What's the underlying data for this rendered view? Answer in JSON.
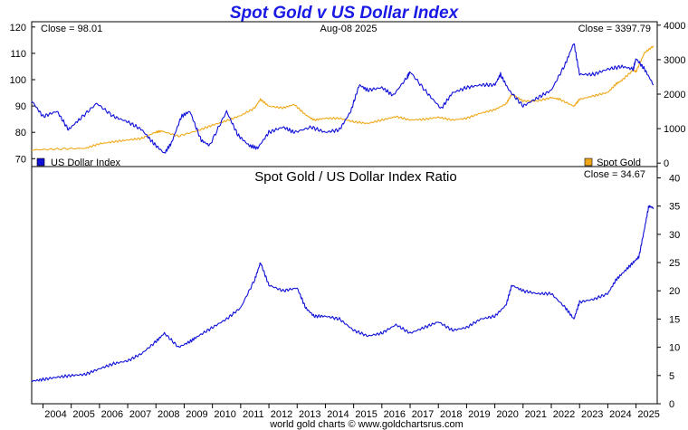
{
  "page": {
    "title": "Spot Gold v US Dollar Index",
    "footer": "world gold charts © www.goldchartsrus.com"
  },
  "colors": {
    "usd": "#1010d8",
    "gold": "#f0a818"
  },
  "chart_data": [
    {
      "type": "line",
      "close_left": "Close = 98.01",
      "date_label": "Aug-08  2025",
      "close_right": "Close = 3397.79",
      "y_left_ticks": [
        70,
        80,
        90,
        100,
        110,
        120
      ],
      "y_right_ticks": [
        0,
        1000,
        2000,
        3000,
        4000
      ],
      "ylim_left": [
        67,
        122
      ],
      "ylim_right": [
        -100,
        4100
      ],
      "x_range": [
        2003.6,
        2025.75
      ],
      "grid": false,
      "series": [
        {
          "name": "US Dollar Index",
          "axis": "left",
          "x": [
            2003.6,
            2004.0,
            2004.5,
            2004.9,
            2005.3,
            2005.9,
            2006.5,
            2007.0,
            2007.5,
            2007.9,
            2008.3,
            2008.55,
            2008.9,
            2009.2,
            2009.6,
            2009.9,
            2010.5,
            2010.9,
            2011.3,
            2011.6,
            2012.0,
            2012.5,
            2012.9,
            2013.5,
            2014.0,
            2014.5,
            2014.9,
            2015.2,
            2015.5,
            2016.0,
            2016.4,
            2016.9,
            2017.0,
            2017.6,
            2018.1,
            2018.5,
            2019.0,
            2019.5,
            2020.0,
            2020.2,
            2020.5,
            2021.0,
            2021.5,
            2022.0,
            2022.5,
            2022.8,
            2023.0,
            2023.5,
            2024.0,
            2024.5,
            2024.9,
            2025.0,
            2025.3,
            2025.62
          ],
          "y": [
            92,
            86,
            88,
            81,
            85,
            91,
            86,
            84,
            81,
            76,
            72,
            76,
            86,
            88,
            77,
            75,
            88,
            79,
            75,
            74,
            80,
            82,
            80,
            82,
            80,
            81,
            88,
            98,
            96,
            97,
            94,
            101,
            103,
            95,
            89,
            95,
            97,
            98,
            98,
            102,
            96,
            90,
            93,
            96,
            106,
            114,
            102,
            102,
            104,
            105,
            104,
            108,
            104,
            98
          ]
        },
        {
          "name": "Spot Gold",
          "axis": "right",
          "x": [
            2003.6,
            2004.5,
            2005.5,
            2006.0,
            2006.5,
            2007.0,
            2007.5,
            2008.0,
            2008.2,
            2008.8,
            2009.5,
            2010.0,
            2010.5,
            2011.0,
            2011.5,
            2011.7,
            2012.0,
            2012.5,
            2012.9,
            2013.3,
            2013.6,
            2014.0,
            2014.5,
            2015.0,
            2015.5,
            2016.0,
            2016.5,
            2017.0,
            2017.5,
            2018.0,
            2018.5,
            2019.0,
            2019.5,
            2020.0,
            2020.4,
            2020.6,
            2021.0,
            2021.5,
            2022.0,
            2022.3,
            2022.8,
            2023.0,
            2023.5,
            2024.0,
            2024.3,
            2024.5,
            2024.9,
            2025.0,
            2025.3,
            2025.62
          ],
          "y": [
            380,
            410,
            430,
            560,
            620,
            670,
            720,
            900,
            930,
            780,
            950,
            1100,
            1230,
            1380,
            1600,
            1850,
            1650,
            1600,
            1700,
            1400,
            1250,
            1300,
            1300,
            1200,
            1150,
            1250,
            1350,
            1250,
            1270,
            1330,
            1250,
            1300,
            1450,
            1550,
            1720,
            2000,
            1800,
            1800,
            1900,
            1850,
            1650,
            1850,
            1950,
            2050,
            2300,
            2400,
            2700,
            2650,
            3200,
            3398
          ]
        }
      ]
    },
    {
      "type": "line",
      "title": "Spot Gold  /  US Dollar Index Ratio",
      "close_right": "Close = 34.67",
      "y_ticks": [
        0,
        5,
        10,
        15,
        20,
        25,
        30,
        35,
        40
      ],
      "ylim": [
        0,
        42
      ],
      "x_range": [
        2003.6,
        2025.75
      ],
      "x_ticks": [
        "2004",
        "2005",
        "2006",
        "2007",
        "2008",
        "2009",
        "2010",
        "2011",
        "2012",
        "2013",
        "2014",
        "2015",
        "2016",
        "2017",
        "2018",
        "2019",
        "2020",
        "2021",
        "2022",
        "2023",
        "2024",
        "2025"
      ],
      "grid": false,
      "series": [
        {
          "x": [
            2003.6,
            2004.0,
            2004.5,
            2005.0,
            2005.5,
            2006.0,
            2006.5,
            2007.0,
            2007.5,
            2008.0,
            2008.3,
            2008.8,
            2009.2,
            2009.5,
            2010.0,
            2010.5,
            2011.0,
            2011.5,
            2011.7,
            2012.0,
            2012.5,
            2013.0,
            2013.3,
            2013.6,
            2014.0,
            2014.5,
            2015.0,
            2015.5,
            2016.0,
            2016.5,
            2017.0,
            2017.5,
            2018.0,
            2018.5,
            2019.0,
            2019.5,
            2020.0,
            2020.4,
            2020.6,
            2021.0,
            2021.5,
            2022.0,
            2022.5,
            2022.8,
            2023.0,
            2023.5,
            2024.0,
            2024.3,
            2024.6,
            2024.9,
            2025.1,
            2025.3,
            2025.45,
            2025.62
          ],
          "y": [
            4.0,
            4.3,
            4.7,
            5.0,
            5.2,
            6.2,
            7.1,
            7.6,
            8.9,
            11.0,
            12.5,
            10.0,
            11.0,
            12.0,
            13.5,
            15.0,
            17.0,
            22.0,
            25.0,
            21.0,
            20.0,
            20.5,
            17.0,
            15.5,
            15.5,
            15.0,
            13.0,
            12.0,
            12.5,
            14.0,
            12.5,
            13.5,
            14.5,
            13.0,
            13.5,
            15.0,
            15.5,
            17.5,
            21.0,
            20.0,
            19.5,
            19.5,
            17.0,
            15.0,
            18.0,
            18.5,
            19.5,
            22.0,
            23.5,
            25.0,
            26.0,
            31.0,
            35.0,
            34.67
          ]
        }
      ]
    }
  ]
}
